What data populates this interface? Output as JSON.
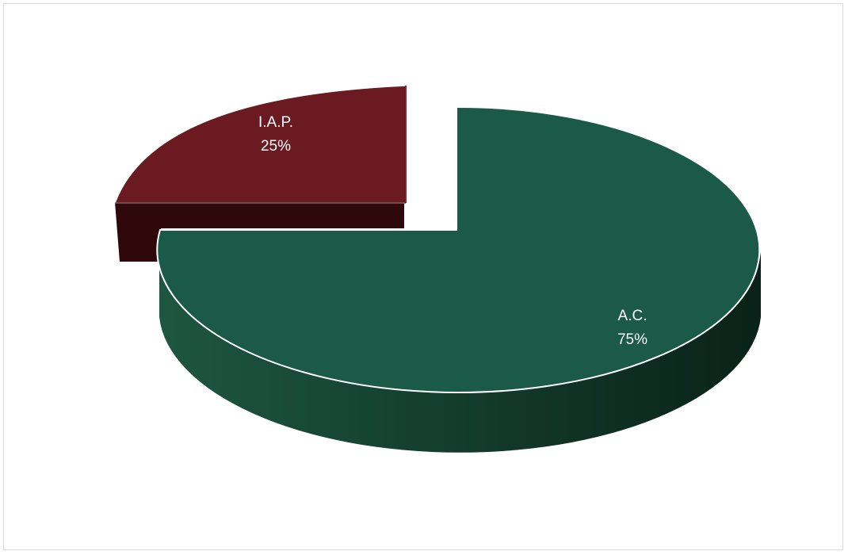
{
  "colors": {
    "ac_top": "#1b5a46",
    "ac_side_light": "#1d5641",
    "ac_side_dark": "#0a2219",
    "iap_top": "#6a1a20",
    "iap_side": "#2e080b",
    "outline": "#ffffff"
  },
  "chart_data": {
    "type": "pie",
    "slices": [
      {
        "label": "I.A.P.",
        "value": 25,
        "percent_label": "25%",
        "exploded": true
      },
      {
        "label": "A.C.",
        "value": 75,
        "percent_label": "75%",
        "exploded": false
      }
    ],
    "legend": "none",
    "style": "3d"
  }
}
